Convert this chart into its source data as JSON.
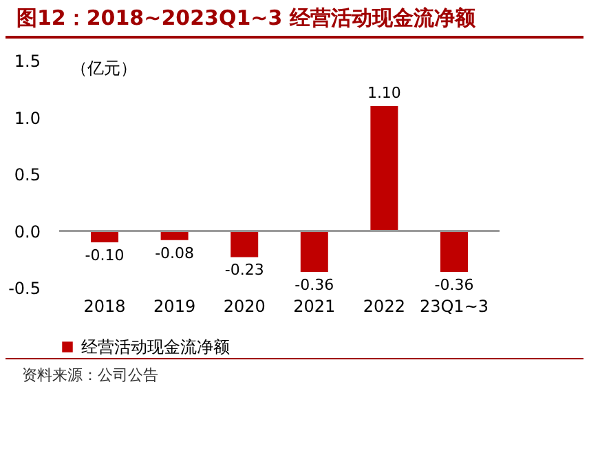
{
  "chart_data": {
    "type": "bar",
    "title": "图12：2018~2023Q1~3 经营活动现金流净额",
    "ylabel": "（亿元）",
    "categories": [
      "2018",
      "2019",
      "2020",
      "2021",
      "2022",
      "23Q1~3"
    ],
    "series": [
      {
        "name": "经营活动现金流净额",
        "color": "#c00000",
        "values": [
          -0.1,
          -0.08,
          -0.23,
          -0.36,
          1.1,
          -0.36
        ],
        "value_labels": [
          "-0.10",
          "-0.08",
          "-0.23",
          "-0.36",
          "1.10",
          "-0.36"
        ]
      }
    ],
    "ylim": [
      -0.5,
      1.5
    ],
    "yticks": [
      {
        "value": -0.5,
        "label": "-0.5"
      },
      {
        "value": 0,
        "label": "0.0"
      },
      {
        "value": 0.5,
        "label": "0.5"
      },
      {
        "value": 1,
        "label": "1.0"
      },
      {
        "value": 1.5,
        "label": "1.5"
      }
    ],
    "legend": "bottom",
    "annotations": [
      "资料来源：公司公告"
    ]
  }
}
